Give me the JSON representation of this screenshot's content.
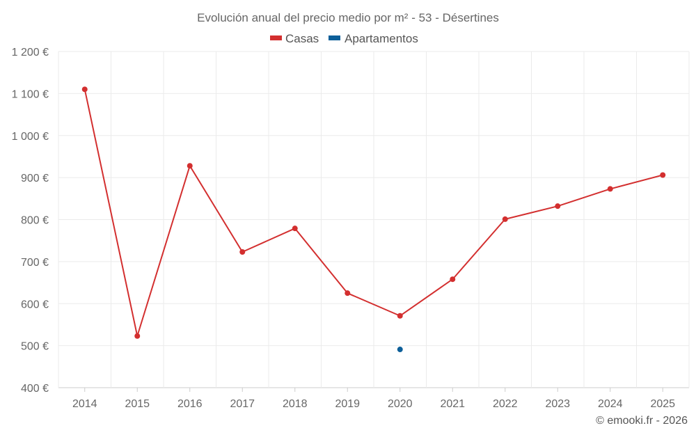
{
  "chart_data": {
    "type": "line",
    "title": "Evolución anual del precio medio por m² - 53 - Désertines",
    "categories": [
      "2014",
      "2015",
      "2016",
      "2017",
      "2018",
      "2019",
      "2020",
      "2021",
      "2022",
      "2023",
      "2024",
      "2025"
    ],
    "series": [
      {
        "name": "Casas",
        "color": "#d32f2f",
        "values": [
          1110,
          523,
          928,
          723,
          779,
          625,
          571,
          658,
          801,
          832,
          873,
          906
        ]
      },
      {
        "name": "Apartamentos",
        "color": "#0d5f99",
        "values": [
          null,
          null,
          null,
          null,
          null,
          null,
          491,
          null,
          null,
          null,
          null,
          null
        ]
      }
    ],
    "yticks": [
      400,
      500,
      600,
      700,
      800,
      900,
      1000,
      1100,
      1200
    ],
    "ytick_labels": [
      "400 €",
      "500 €",
      "600 €",
      "700 €",
      "800 €",
      "900 €",
      "1 000 €",
      "1 100 €",
      "1 200 €"
    ],
    "ylim": [
      400,
      1200
    ],
    "grid": true,
    "legend_position": "top-center"
  },
  "credit": "© emooki.fr - 2026"
}
